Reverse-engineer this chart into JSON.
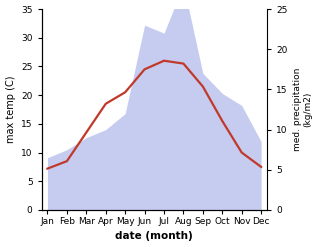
{
  "months": [
    "Jan",
    "Feb",
    "Mar",
    "Apr",
    "May",
    "Jun",
    "Jul",
    "Aug",
    "Sep",
    "Oct",
    "Nov",
    "Dec"
  ],
  "x": [
    1,
    2,
    3,
    4,
    5,
    6,
    7,
    8,
    9,
    10,
    11,
    12
  ],
  "temperature": [
    7.2,
    8.5,
    13.5,
    18.5,
    20.5,
    24.5,
    26.0,
    25.5,
    21.5,
    15.5,
    10.0,
    7.5
  ],
  "precipitation": [
    6.5,
    7.5,
    9.0,
    10.0,
    12.0,
    23.0,
    22.0,
    28.0,
    17.0,
    14.5,
    13.0,
    8.5
  ],
  "temp_color": "#c0392b",
  "precip_fill_color": "#bcc4ee",
  "temp_ylim": [
    0,
    35
  ],
  "precip_ylim": [
    0,
    25
  ],
  "ylabel_left": "max temp (C)",
  "ylabel_right": "med. precipitation\n(kg/m2)",
  "xlabel": "date (month)",
  "right_yticks": [
    0,
    5,
    10,
    15,
    20,
    25
  ],
  "left_yticks": [
    0,
    5,
    10,
    15,
    20,
    25,
    30,
    35
  ],
  "temp_linewidth": 1.6,
  "background_color": "#ffffff"
}
